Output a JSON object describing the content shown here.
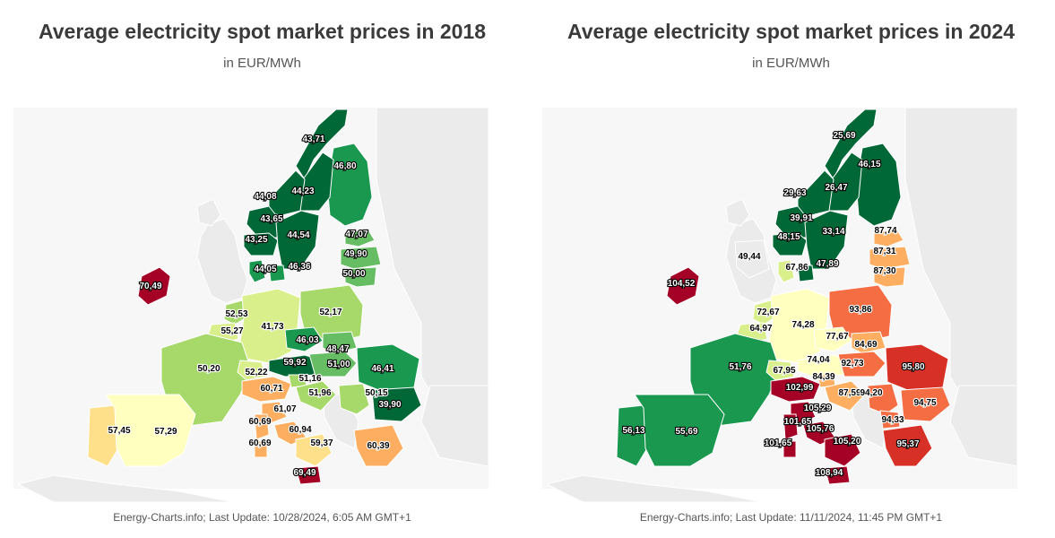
{
  "maps": [
    {
      "title": "Average electricity spot market prices in 2018",
      "subtitle": "in EUR/MWh",
      "footer": "Energy-Charts.info; Last Update: 10/28/2024, 6:05 AM GMT+1",
      "regions": [
        {
          "id": "no-north",
          "label": "43,71",
          "color": "#006837",
          "text": "#ffffff"
        },
        {
          "id": "fi",
          "label": "46,80",
          "color": "#1a9850",
          "text": "#ffffff"
        },
        {
          "id": "se-upper",
          "label": "44,23",
          "color": "#006837",
          "text": "#ffffff"
        },
        {
          "id": "no-mid",
          "label": "44,08",
          "color": "#006837",
          "text": "#ffffff"
        },
        {
          "id": "no-west",
          "label": "43,65",
          "color": "#006837",
          "text": "#ffffff"
        },
        {
          "id": "no-south",
          "label": "43,25",
          "color": "#006837",
          "text": "#ffffff"
        },
        {
          "id": "se-south",
          "label": "44,54",
          "color": "#006837",
          "text": "#ffffff"
        },
        {
          "id": "ee",
          "label": "47,07",
          "color": "#66bd63",
          "text": "#ffffff"
        },
        {
          "id": "lv",
          "label": "49,90",
          "color": "#66bd63",
          "text": "#ffffff"
        },
        {
          "id": "lt",
          "label": "50,00",
          "color": "#66bd63",
          "text": "#ffffff"
        },
        {
          "id": "dk-west",
          "label": "44,05",
          "color": "#1a9850",
          "text": "#ffffff"
        },
        {
          "id": "dk-east",
          "label": "46,36",
          "color": "#1a9850",
          "text": "#ffffff"
        },
        {
          "id": "ie",
          "label": "70,49",
          "color": "#a50026",
          "text": "#ffffff"
        },
        {
          "id": "nl",
          "label": "52,53",
          "color": "#a6d96a",
          "text": "#000000"
        },
        {
          "id": "be",
          "label": "55,27",
          "color": "#d9ef8b",
          "text": "#000000"
        },
        {
          "id": "de",
          "label": "41,73",
          "color": "#d9ef8b",
          "text": "#000000"
        },
        {
          "id": "pl",
          "label": "52,17",
          "color": "#a6d96a",
          "text": "#000000"
        },
        {
          "id": "cz",
          "label": "46,03",
          "color": "#1a9850",
          "text": "#ffffff"
        },
        {
          "id": "sk",
          "label": "48,47",
          "color": "#66bd63",
          "text": "#ffffff"
        },
        {
          "id": "fr",
          "label": "50,20",
          "color": "#a6d96a",
          "text": "#000000"
        },
        {
          "id": "ch",
          "label": "52,22",
          "color": "#d9ef8b",
          "text": "#000000"
        },
        {
          "id": "at",
          "label": "59,92",
          "color": "#006837",
          "text": "#ffffff"
        },
        {
          "id": "hu",
          "label": "51,00",
          "color": "#66bd63",
          "text": "#ffffff"
        },
        {
          "id": "ro",
          "label": "46,41",
          "color": "#1a9850",
          "text": "#ffffff"
        },
        {
          "id": "it-north",
          "label": "60,71",
          "color": "#fdae61",
          "text": "#000000"
        },
        {
          "id": "si",
          "label": "51,16",
          "color": "#a6d96a",
          "text": "#000000"
        },
        {
          "id": "hr",
          "label": "51,96",
          "color": "#a6d96a",
          "text": "#000000"
        },
        {
          "id": "rs",
          "label": "50,15",
          "color": "#a6d96a",
          "text": "#000000"
        },
        {
          "id": "bg",
          "label": "39,90",
          "color": "#006837",
          "text": "#ffffff"
        },
        {
          "id": "it-cnorth",
          "label": "61,07",
          "color": "#fdae61",
          "text": "#000000"
        },
        {
          "id": "it-csouth",
          "label": "60,94",
          "color": "#fdae61",
          "text": "#000000"
        },
        {
          "id": "it-sardinia",
          "label": "60,69",
          "color": "#fdae61",
          "text": "#000000"
        },
        {
          "id": "it-sardinia-s",
          "label": "60,69",
          "color": "#fdae61",
          "text": "#000000"
        },
        {
          "id": "it-south",
          "label": "59,37",
          "color": "#fee08b",
          "text": "#000000"
        },
        {
          "id": "it-sicily",
          "label": "69,49",
          "color": "#a50026",
          "text": "#ffffff"
        },
        {
          "id": "gr",
          "label": "60,39",
          "color": "#fdae61",
          "text": "#000000"
        },
        {
          "id": "pt",
          "label": "57,45",
          "color": "#fee08b",
          "text": "#000000"
        },
        {
          "id": "es",
          "label": "57,29",
          "color": "#ffffbf",
          "text": "#000000"
        }
      ]
    },
    {
      "title": "Average electricity spot market prices in 2024",
      "subtitle": "in EUR/MWh",
      "footer": "Energy-Charts.info; Last Update: 11/11/2024, 11:45 PM GMT+1",
      "regions": [
        {
          "id": "no-north",
          "label": "25,69",
          "color": "#006837",
          "text": "#ffffff"
        },
        {
          "id": "fi",
          "label": "46,15",
          "color": "#006837",
          "text": "#ffffff"
        },
        {
          "id": "se-upper",
          "label": "26,47",
          "color": "#006837",
          "text": "#ffffff"
        },
        {
          "id": "no-mid",
          "label": "29,63",
          "color": "#006837",
          "text": "#ffffff"
        },
        {
          "id": "no-west",
          "label": "39,91",
          "color": "#006837",
          "text": "#ffffff"
        },
        {
          "id": "no-south",
          "label": "48,15",
          "color": "#006837",
          "text": "#ffffff"
        },
        {
          "id": "se-south",
          "label": "33,14",
          "color": "#006837",
          "text": "#ffffff"
        },
        {
          "id": "ee",
          "label": "87,74",
          "color": "#fdae61",
          "text": "#000000"
        },
        {
          "id": "lv",
          "label": "87,31",
          "color": "#fdae61",
          "text": "#000000"
        },
        {
          "id": "lt",
          "label": "87,30",
          "color": "#fdae61",
          "text": "#000000"
        },
        {
          "id": "dk-west",
          "label": "67,86",
          "color": "#d9ef8b",
          "text": "#000000"
        },
        {
          "id": "dk-east",
          "label": "47,89",
          "color": "#006837",
          "text": "#ffffff"
        },
        {
          "id": "gb",
          "label": "49,44",
          "color": "#ebebeb",
          "text": "#000000"
        },
        {
          "id": "ie",
          "label": "104,52",
          "color": "#a50026",
          "text": "#ffffff"
        },
        {
          "id": "nl",
          "label": "72,67",
          "color": "#d9ef8b",
          "text": "#000000"
        },
        {
          "id": "be",
          "label": "64,97",
          "color": "#d9ef8b",
          "text": "#000000"
        },
        {
          "id": "de",
          "label": "74,28",
          "color": "#ffffbf",
          "text": "#000000"
        },
        {
          "id": "pl",
          "label": "93,86",
          "color": "#f46d43",
          "text": "#000000"
        },
        {
          "id": "cz",
          "label": "77,67",
          "color": "#ffffbf",
          "text": "#000000"
        },
        {
          "id": "sk",
          "label": "84,69",
          "color": "#fdae61",
          "text": "#000000"
        },
        {
          "id": "fr",
          "label": "51,76",
          "color": "#1a9850",
          "text": "#ffffff"
        },
        {
          "id": "ch",
          "label": "67,95",
          "color": "#d9ef8b",
          "text": "#000000"
        },
        {
          "id": "at",
          "label": "74,04",
          "color": "#ffffbf",
          "text": "#000000"
        },
        {
          "id": "si",
          "label": "84,39",
          "color": "#fdae61",
          "text": "#000000"
        },
        {
          "id": "hu",
          "label": "92,73",
          "color": "#f46d43",
          "text": "#000000"
        },
        {
          "id": "ro",
          "label": "95,80",
          "color": "#d73027",
          "text": "#ffffff"
        },
        {
          "id": "it-north",
          "label": "102,99",
          "color": "#a50026",
          "text": "#ffffff"
        },
        {
          "id": "hr",
          "label": "87,59",
          "color": "#fdae61",
          "text": "#000000"
        },
        {
          "id": "rs",
          "label": "94,20",
          "color": "#f46d43",
          "text": "#000000"
        },
        {
          "id": "bg",
          "label": "94,75",
          "color": "#f46d43",
          "text": "#000000"
        },
        {
          "id": "it-cnorth",
          "label": "105,29",
          "color": "#a50026",
          "text": "#ffffff"
        },
        {
          "id": "it-sardinia",
          "label": "101,65",
          "color": "#a50026",
          "text": "#ffffff"
        },
        {
          "id": "it-csouth",
          "label": "105,76",
          "color": "#a50026",
          "text": "#ffffff"
        },
        {
          "id": "it-sardinia-s",
          "label": "101,65",
          "color": "#a50026",
          "text": "#ffffff"
        },
        {
          "id": "mk",
          "label": "94,33",
          "color": "#f46d43",
          "text": "#000000"
        },
        {
          "id": "it-south",
          "label": "105,20",
          "color": "#a50026",
          "text": "#ffffff"
        },
        {
          "id": "gr",
          "label": "95,37",
          "color": "#d73027",
          "text": "#ffffff"
        },
        {
          "id": "it-sicily",
          "label": "108,94",
          "color": "#a50026",
          "text": "#ffffff"
        },
        {
          "id": "pt",
          "label": "56,13",
          "color": "#1a9850",
          "text": "#ffffff"
        },
        {
          "id": "es",
          "label": "55,69",
          "color": "#1a9850",
          "text": "#ffffff"
        }
      ]
    }
  ]
}
